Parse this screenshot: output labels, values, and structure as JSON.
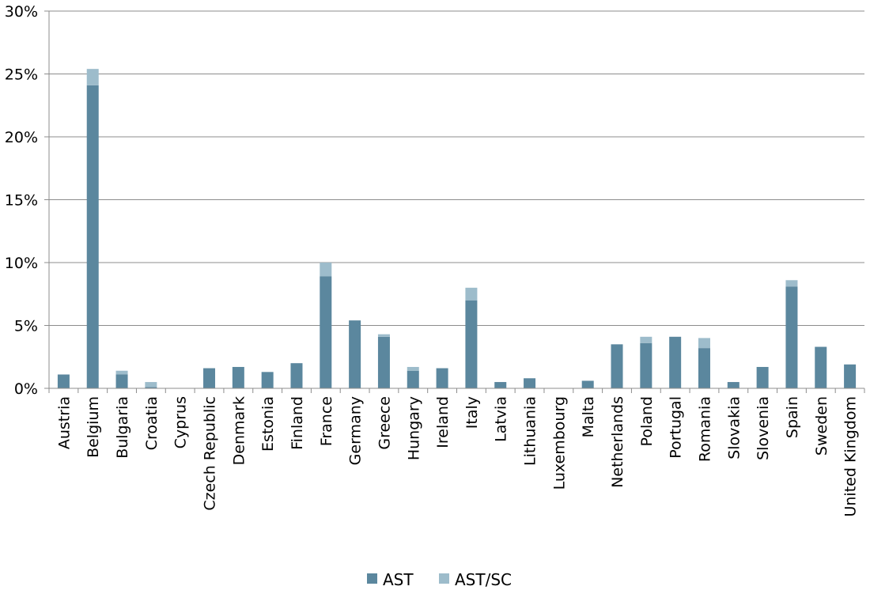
{
  "chart_data": {
    "type": "bar",
    "stacked": true,
    "title": "",
    "xlabel": "",
    "ylabel": "",
    "ylim": [
      0,
      30
    ],
    "yticks": [
      0,
      5,
      10,
      15,
      20,
      25,
      30
    ],
    "ytick_labels": [
      "0%",
      "5%",
      "10%",
      "15%",
      "20%",
      "25%",
      "30%"
    ],
    "grid": true,
    "legend_position": "bottom",
    "categories": [
      "Austria",
      "Belgium",
      "Bulgaria",
      "Croatia",
      "Cyprus",
      "Czech Republic",
      "Denmark",
      "Estonia",
      "Finland",
      "France",
      "Germany",
      "Greece",
      "Hungary",
      "Ireland",
      "Italy",
      "Latvia",
      "Lithuania",
      "Luxembourg",
      "Malta",
      "Netherlands",
      "Poland",
      "Portugal",
      "Romania",
      "Slovakia",
      "Slovenia",
      "Spain",
      "Sweden",
      "United Kingdom"
    ],
    "series": [
      {
        "name": "AST",
        "color": "#5b879e",
        "values": [
          1.1,
          24.1,
          1.1,
          0.1,
          0,
          1.6,
          1.7,
          1.3,
          2.0,
          8.9,
          5.4,
          4.1,
          1.4,
          1.6,
          7.0,
          0.5,
          0.8,
          0,
          0.6,
          3.5,
          3.6,
          4.1,
          3.2,
          0.5,
          1.7,
          8.1,
          3.3,
          1.9
        ]
      },
      {
        "name": "AST/SC",
        "color": "#9dbccb",
        "values": [
          0,
          1.3,
          0.3,
          0.4,
          0,
          0,
          0,
          0,
          0,
          1.1,
          0,
          0.2,
          0.3,
          0,
          1.0,
          0,
          0,
          0,
          0,
          0,
          0.5,
          0,
          0.8,
          0,
          0,
          0.5,
          0,
          0
        ]
      }
    ]
  }
}
